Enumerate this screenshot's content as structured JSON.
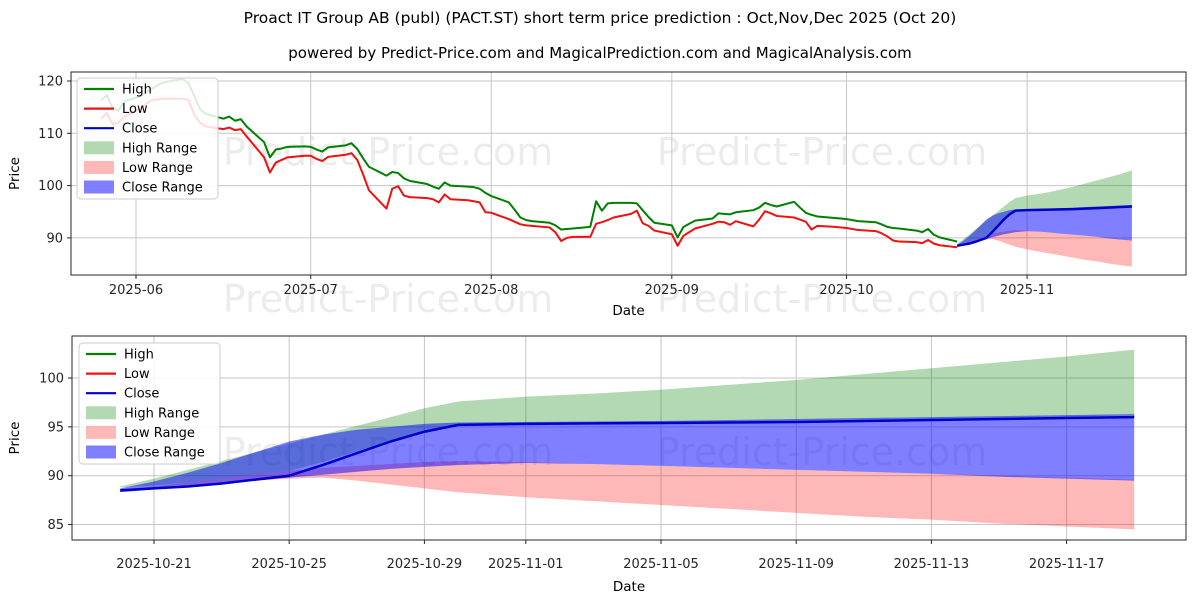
{
  "title": "Proact IT Group AB (publ) (PACT.ST) short term price prediction : Oct,Nov,Dec 2025 (Oct 20)",
  "subtitle": "powered by Predict-Price.com and MagicalPrediction.com and MagicalAnalysis.com",
  "watermark": {
    "text": "Predict-Price.com"
  },
  "colors": {
    "high_line": "#008000",
    "low_line": "#f01010",
    "close_line": "#0000cc",
    "high_range_fill": "rgba(0,128,0,0.3)",
    "low_range_fill": "rgba(255,0,0,0.28)",
    "close_range_fill": "rgba(0,0,255,0.5)",
    "grid": "#c6c6c6",
    "spine": "#262626"
  },
  "legend_items": [
    {
      "label": "High",
      "type": "line",
      "color": "#008000"
    },
    {
      "label": "Low",
      "type": "line",
      "color": "#f01010"
    },
    {
      "label": "Close",
      "type": "line",
      "color": "#0000cc"
    },
    {
      "label": "High Range",
      "type": "patch",
      "color": "rgba(0,128,0,0.3)"
    },
    {
      "label": "Low Range",
      "type": "patch",
      "color": "rgba(255,0,0,0.28)"
    },
    {
      "label": "Close Range",
      "type": "patch",
      "color": "rgba(0,0,255,0.5)"
    }
  ],
  "chart_data": [
    {
      "type": "line",
      "name": "history-and-prediction",
      "xlabel": "Date",
      "ylabel": "Price",
      "grid": true,
      "legend_position": "upper left",
      "ylim": [
        82.9,
        121.8
      ],
      "xlim": [
        "2025-05-21",
        "2025-11-28"
      ],
      "y_ticks": [
        120,
        110,
        100,
        90
      ],
      "x_ticks": [
        {
          "date": "2025-06-01",
          "label": "2025-06"
        },
        {
          "date": "2025-07-01",
          "label": "2025-07"
        },
        {
          "date": "2025-08-01",
          "label": "2025-08"
        },
        {
          "date": "2025-09-01",
          "label": "2025-09"
        },
        {
          "date": "2025-10-01",
          "label": "2025-10"
        },
        {
          "date": "2025-11-01",
          "label": "2025-11"
        }
      ],
      "history": {
        "dates": [
          "2025-05-26",
          "2025-05-27",
          "2025-05-28",
          "2025-05-29",
          "2025-05-30",
          "2025-06-02",
          "2025-06-03",
          "2025-06-04",
          "2025-06-05",
          "2025-06-06",
          "2025-06-09",
          "2025-06-10",
          "2025-06-11",
          "2025-06-12",
          "2025-06-13",
          "2025-06-16",
          "2025-06-17",
          "2025-06-18",
          "2025-06-19",
          "2025-06-20",
          "2025-06-23",
          "2025-06-24",
          "2025-06-25",
          "2025-06-26",
          "2025-06-27",
          "2025-06-30",
          "2025-07-01",
          "2025-07-02",
          "2025-07-03",
          "2025-07-04",
          "2025-07-07",
          "2025-07-08",
          "2025-07-09",
          "2025-07-10",
          "2025-07-11",
          "2025-07-14",
          "2025-07-15",
          "2025-07-16",
          "2025-07-17",
          "2025-07-18",
          "2025-07-21",
          "2025-07-22",
          "2025-07-23",
          "2025-07-24",
          "2025-07-25",
          "2025-07-28",
          "2025-07-29",
          "2025-07-30",
          "2025-07-31",
          "2025-08-01",
          "2025-08-04",
          "2025-08-05",
          "2025-08-06",
          "2025-08-07",
          "2025-08-08",
          "2025-08-11",
          "2025-08-12",
          "2025-08-13",
          "2025-08-14",
          "2025-08-15",
          "2025-08-18",
          "2025-08-19",
          "2025-08-20",
          "2025-08-21",
          "2025-08-22",
          "2025-08-25",
          "2025-08-26",
          "2025-08-27",
          "2025-08-28",
          "2025-08-29",
          "2025-09-01",
          "2025-09-02",
          "2025-09-03",
          "2025-09-04",
          "2025-09-05",
          "2025-09-08",
          "2025-09-09",
          "2025-09-10",
          "2025-09-11",
          "2025-09-12",
          "2025-09-15",
          "2025-09-16",
          "2025-09-17",
          "2025-09-18",
          "2025-09-19",
          "2025-09-22",
          "2025-09-23",
          "2025-09-24",
          "2025-09-25",
          "2025-09-26",
          "2025-09-29",
          "2025-09-30",
          "2025-10-01",
          "2025-10-02",
          "2025-10-03",
          "2025-10-06",
          "2025-10-07",
          "2025-10-08",
          "2025-10-09",
          "2025-10-10",
          "2025-10-13",
          "2025-10-14",
          "2025-10-15",
          "2025-10-16",
          "2025-10-17",
          "2025-10-20"
        ],
        "high": [
          116.3,
          117.3,
          114.9,
          114.3,
          116.1,
          117.2,
          118.1,
          118.7,
          119.4,
          119.8,
          120.4,
          119.6,
          117.2,
          114.6,
          113.7,
          112.8,
          113.2,
          112.4,
          112.7,
          111.3,
          108.3,
          105.4,
          106.9,
          107.1,
          107.4,
          107.5,
          107.4,
          106.9,
          106.5,
          107.3,
          107.7,
          108.1,
          107.0,
          105.2,
          103.6,
          101.9,
          102.6,
          102.4,
          101.4,
          100.9,
          100.3,
          99.8,
          99.4,
          100.6,
          100.0,
          99.8,
          99.7,
          99.4,
          98.6,
          98.0,
          96.8,
          95.4,
          93.9,
          93.4,
          93.2,
          92.9,
          92.4,
          91.6,
          91.7,
          91.8,
          92.1,
          97.0,
          95.2,
          96.6,
          96.7,
          96.7,
          96.6,
          95.3,
          94.0,
          92.9,
          92.4,
          90.1,
          92.1,
          92.7,
          93.3,
          93.7,
          94.7,
          94.6,
          94.5,
          94.9,
          95.3,
          95.8,
          96.7,
          96.3,
          96.0,
          96.9,
          95.8,
          94.8,
          94.4,
          94.1,
          93.8,
          93.7,
          93.6,
          93.4,
          93.2,
          93.0,
          92.6,
          92.1,
          91.9,
          91.8,
          91.4,
          91.1,
          91.7,
          90.6,
          90.1,
          89.3
        ],
        "low": [
          112.8,
          113.9,
          111.7,
          112.1,
          113.2,
          114.9,
          115.9,
          116.4,
          116.5,
          116.6,
          116.6,
          116.4,
          113.6,
          112.0,
          111.3,
          110.8,
          111.1,
          110.6,
          110.8,
          109.4,
          105.4,
          102.5,
          104.4,
          104.9,
          105.4,
          105.7,
          105.7,
          105.1,
          104.7,
          105.5,
          105.9,
          106.2,
          104.9,
          102.1,
          99.1,
          95.6,
          99.4,
          99.9,
          98.1,
          97.8,
          97.6,
          97.4,
          96.8,
          98.3,
          97.4,
          97.2,
          97.0,
          96.8,
          94.9,
          94.8,
          93.6,
          93.1,
          92.6,
          92.4,
          92.3,
          92.0,
          91.1,
          89.4,
          90.0,
          90.2,
          90.2,
          92.7,
          93.0,
          93.4,
          93.9,
          94.6,
          95.2,
          92.8,
          92.3,
          91.4,
          90.7,
          88.5,
          90.4,
          91.1,
          91.8,
          92.7,
          93.1,
          93.0,
          92.5,
          93.2,
          92.2,
          93.5,
          95.1,
          94.7,
          94.2,
          93.9,
          93.5,
          93.1,
          91.6,
          92.3,
          92.1,
          92.0,
          91.9,
          91.7,
          91.5,
          91.3,
          90.9,
          90.3,
          89.5,
          89.3,
          89.2,
          89.0,
          89.6,
          88.9,
          88.6,
          88.2
        ]
      },
      "prediction": {
        "dates": [
          "2025-10-20",
          "2025-10-21",
          "2025-10-22",
          "2025-10-23",
          "2025-10-24",
          "2025-10-25",
          "2025-10-26",
          "2025-10-27",
          "2025-10-28",
          "2025-10-29",
          "2025-10-30",
          "2025-11-01",
          "2025-11-03",
          "2025-11-05",
          "2025-11-07",
          "2025-11-09",
          "2025-11-11",
          "2025-11-13",
          "2025-11-15",
          "2025-11-17",
          "2025-11-19"
        ],
        "close": [
          88.5,
          88.7,
          88.9,
          89.2,
          89.6,
          90.0,
          91.1,
          92.3,
          93.5,
          94.5,
          95.2,
          95.3,
          95.35,
          95.4,
          95.45,
          95.5,
          95.6,
          95.7,
          95.8,
          95.9,
          96.0
        ],
        "close_max": [
          88.7,
          89.4,
          90.3,
          91.3,
          92.4,
          93.5,
          94.2,
          94.7,
          95.0,
          95.3,
          95.45,
          95.5,
          95.55,
          95.6,
          95.7,
          95.8,
          95.9,
          96.0,
          96.1,
          96.2,
          96.3
        ],
        "close_min": [
          88.3,
          88.6,
          88.9,
          89.2,
          89.5,
          89.8,
          90.1,
          90.4,
          90.7,
          90.9,
          91.1,
          91.3,
          91.2,
          91.0,
          90.8,
          90.6,
          90.4,
          90.2,
          89.9,
          89.7,
          89.5
        ],
        "high_max": [
          88.9,
          89.7,
          90.6,
          91.5,
          92.4,
          93.3,
          94.2,
          95.1,
          96.0,
          96.9,
          97.6,
          98.1,
          98.4,
          98.8,
          99.3,
          99.8,
          100.4,
          101.0,
          101.6,
          102.2,
          102.9
        ],
        "high_min": [
          88.8,
          89.0,
          89.3,
          89.7,
          90.1,
          90.5,
          91.4,
          92.5,
          93.6,
          94.6,
          95.3,
          95.4,
          95.45,
          95.5,
          95.55,
          95.65,
          95.75,
          95.85,
          95.95,
          96.05,
          96.2
        ],
        "low_max": [
          88.6,
          88.9,
          89.3,
          89.7,
          90.1,
          90.5,
          90.8,
          91.0,
          91.2,
          91.4,
          91.5,
          91.4,
          91.2,
          91.0,
          90.8,
          90.6,
          90.4,
          90.2,
          90.0,
          89.8,
          89.6
        ],
        "low_min": [
          88.4,
          88.7,
          89.0,
          89.3,
          89.5,
          89.7,
          89.8,
          89.5,
          89.1,
          88.7,
          88.3,
          87.8,
          87.4,
          87.0,
          86.6,
          86.2,
          85.8,
          85.5,
          85.1,
          84.8,
          84.5
        ]
      }
    },
    {
      "type": "line",
      "name": "prediction-detail",
      "xlabel": "Date",
      "ylabel": "Price",
      "grid": true,
      "legend_position": "upper left",
      "ylim": [
        83.4,
        104.3
      ],
      "xlim": [
        "2025-10-18",
        "2025-11-20"
      ],
      "y_ticks": [
        100,
        95,
        90,
        85
      ],
      "x_ticks": [
        {
          "date": "2025-10-21",
          "label": "2025-10-21"
        },
        {
          "date": "2025-10-25",
          "label": "2025-10-25"
        },
        {
          "date": "2025-10-29",
          "label": "2025-10-29"
        },
        {
          "date": "2025-11-01",
          "label": "2025-11-01"
        },
        {
          "date": "2025-11-05",
          "label": "2025-11-05"
        },
        {
          "date": "2025-11-09",
          "label": "2025-11-09"
        },
        {
          "date": "2025-11-13",
          "label": "2025-11-13"
        },
        {
          "date": "2025-11-17",
          "label": "2025-11-17"
        }
      ],
      "prediction": {
        "dates": [
          "2025-10-20",
          "2025-10-21",
          "2025-10-22",
          "2025-10-23",
          "2025-10-24",
          "2025-10-25",
          "2025-10-26",
          "2025-10-27",
          "2025-10-28",
          "2025-10-29",
          "2025-10-30",
          "2025-11-01",
          "2025-11-03",
          "2025-11-05",
          "2025-11-07",
          "2025-11-09",
          "2025-11-11",
          "2025-11-13",
          "2025-11-15",
          "2025-11-17",
          "2025-11-19"
        ],
        "close": [
          88.5,
          88.7,
          88.9,
          89.2,
          89.6,
          90.0,
          91.1,
          92.3,
          93.5,
          94.5,
          95.2,
          95.3,
          95.35,
          95.4,
          95.45,
          95.5,
          95.6,
          95.7,
          95.8,
          95.9,
          96.0
        ],
        "close_max": [
          88.7,
          89.4,
          90.3,
          91.3,
          92.4,
          93.5,
          94.2,
          94.7,
          95.0,
          95.3,
          95.45,
          95.5,
          95.55,
          95.6,
          95.7,
          95.8,
          95.9,
          96.0,
          96.1,
          96.2,
          96.3
        ],
        "close_min": [
          88.3,
          88.6,
          88.9,
          89.2,
          89.5,
          89.8,
          90.1,
          90.4,
          90.7,
          90.9,
          91.1,
          91.3,
          91.2,
          91.0,
          90.8,
          90.6,
          90.4,
          90.2,
          89.9,
          89.7,
          89.5
        ],
        "high_max": [
          88.9,
          89.7,
          90.6,
          91.5,
          92.4,
          93.3,
          94.2,
          95.1,
          96.0,
          96.9,
          97.6,
          98.1,
          98.4,
          98.8,
          99.3,
          99.8,
          100.4,
          101.0,
          101.6,
          102.2,
          102.9
        ],
        "high_min": [
          88.8,
          89.0,
          89.3,
          89.7,
          90.1,
          90.5,
          91.4,
          92.5,
          93.6,
          94.6,
          95.3,
          95.4,
          95.45,
          95.5,
          95.55,
          95.65,
          95.75,
          95.85,
          95.95,
          96.05,
          96.2
        ],
        "low_max": [
          88.6,
          88.9,
          89.3,
          89.7,
          90.1,
          90.5,
          90.8,
          91.0,
          91.2,
          91.4,
          91.5,
          91.4,
          91.2,
          91.0,
          90.8,
          90.6,
          90.4,
          90.2,
          90.0,
          89.8,
          89.6
        ],
        "low_min": [
          88.4,
          88.7,
          89.0,
          89.3,
          89.5,
          89.7,
          89.8,
          89.5,
          89.1,
          88.7,
          88.3,
          87.8,
          87.4,
          87.0,
          86.6,
          86.2,
          85.8,
          85.5,
          85.1,
          84.8,
          84.5
        ]
      }
    }
  ]
}
